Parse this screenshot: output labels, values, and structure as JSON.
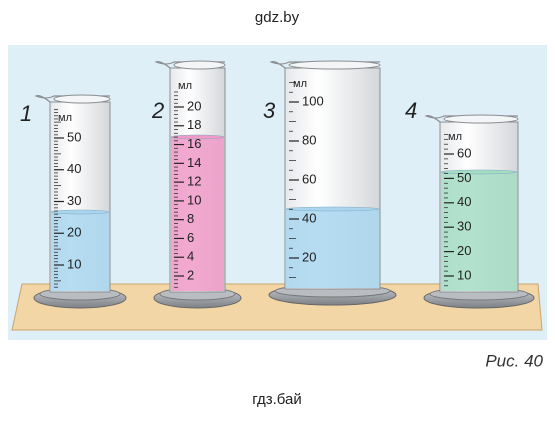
{
  "header": "gdz.by",
  "cylinders": [
    {
      "number": "1",
      "unit": "мл",
      "scale": [
        50,
        40,
        30,
        20,
        10
      ]
    },
    {
      "number": "2",
      "unit": "мл",
      "scale": [
        20,
        18,
        16,
        14,
        12,
        10,
        8,
        6,
        4,
        2
      ]
    },
    {
      "number": "3",
      "unit": "мл",
      "scale": [
        100,
        80,
        60,
        40,
        20
      ]
    },
    {
      "number": "4",
      "unit": "мл",
      "scale": [
        60,
        50,
        40,
        30,
        20,
        10
      ]
    }
  ],
  "caption": "Рис. 40",
  "footer": "гдз.бай"
}
